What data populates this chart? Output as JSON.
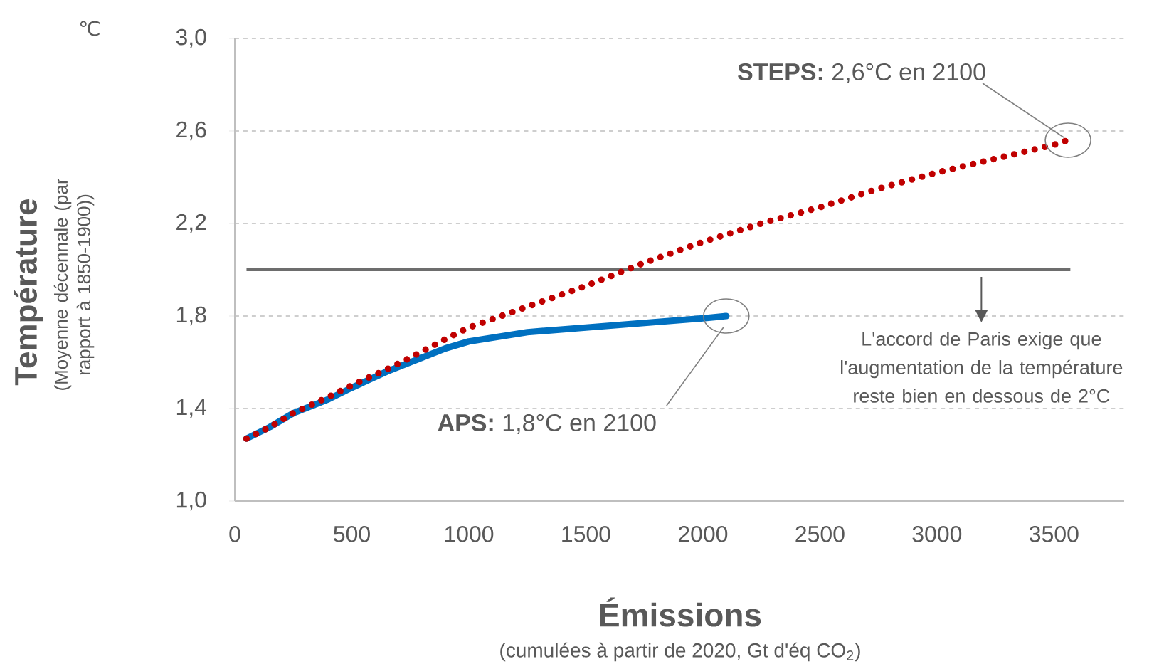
{
  "chart_data": {
    "type": "line",
    "xlabel": "Émissions",
    "ylabel": "Température",
    "xlim": [
      0,
      3800
    ],
    "ylim": [
      1.0,
      3.0
    ],
    "xticks": [
      0,
      500,
      1000,
      1500,
      2000,
      2500,
      3000,
      3500
    ],
    "yticks": [
      {
        "value": 1.0,
        "label": "1,0"
      },
      {
        "value": 1.4,
        "label": "1,4"
      },
      {
        "value": 1.8,
        "label": "1,8"
      },
      {
        "value": 2.2,
        "label": "2,2"
      },
      {
        "value": 2.6,
        "label": "2,6"
      },
      {
        "value": 3.0,
        "label": "3,0"
      }
    ],
    "grid": "y",
    "series": [
      {
        "color": "#0070c0",
        "line_style": "solid",
        "x": [
          50,
          150,
          250,
          400,
          500,
          650,
          750,
          900,
          1000,
          1250,
          1500,
          1750,
          2000,
          2100
        ],
        "values": [
          1.27,
          1.32,
          1.38,
          1.44,
          1.49,
          1.56,
          1.6,
          1.66,
          1.69,
          1.73,
          1.75,
          1.77,
          1.79,
          1.8
        ]
      },
      {
        "color": "#c00000",
        "line_style": "dotted",
        "x": [
          50,
          150,
          250,
          400,
          500,
          650,
          750,
          900,
          1000,
          1250,
          1500,
          1750,
          2000,
          2250,
          2500,
          2750,
          3000,
          3250,
          3500,
          3560
        ],
        "values": [
          1.27,
          1.32,
          1.38,
          1.45,
          1.5,
          1.57,
          1.62,
          1.7,
          1.75,
          1.84,
          1.93,
          2.03,
          2.12,
          2.2,
          2.27,
          2.35,
          2.42,
          2.48,
          2.54,
          2.56
        ]
      }
    ],
    "ref_lines": [
      {
        "axis": "y",
        "value": 2.0,
        "color": "#6d6d6d",
        "label": "L'accord de Paris exige que l'augmentation de la température reste bien en dessous de 2°C"
      }
    ],
    "annotations": [
      "℃",
      "(Moyenne décennale  (par rapport à 1850-1900))",
      "(cumulées à partir de 2020, Gt d'éq CO$_{2}$)",
      {
        "text": "**STEPS:** 2,6°C en 2100",
        "x": 3560,
        "y": 2.56
      },
      {
        "text": "**APS:** 1,8°C en 2100",
        "x": 2100,
        "y": 1.8
      }
    ]
  }
}
